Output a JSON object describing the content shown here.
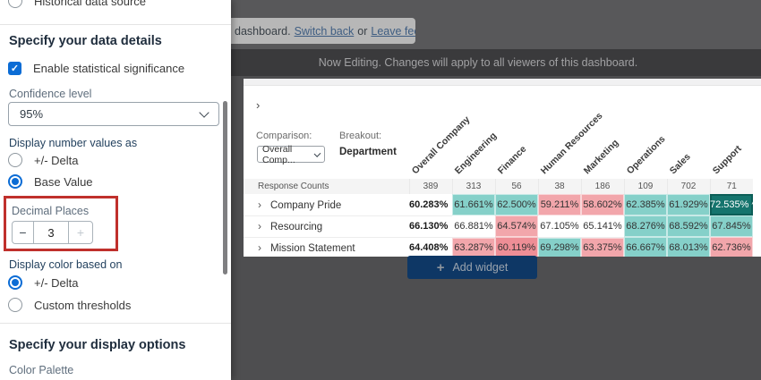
{
  "sidebar": {
    "historical_label": "Historical data source",
    "section1_title": "Specify your data details",
    "enable_stat_label": "Enable statistical significance",
    "check_glyph": "✓",
    "confidence_label": "Confidence level",
    "confidence_value": "95%",
    "display_number_label": "Display number values as",
    "number_options": [
      "+/- Delta",
      "Base Value"
    ],
    "decimal_label": "Decimal Places",
    "decimal_value": "3",
    "stepper_minus": "−",
    "stepper_plus": "+",
    "display_color_label": "Display color based on",
    "color_options": [
      "+/- Delta",
      "Custom thresholds"
    ],
    "section2_title": "Specify your display options",
    "palette_label": "Color Palette"
  },
  "topbar": {
    "toast_prefix": "dashboard.",
    "switch_back_link": "Switch back",
    "or_text": "or",
    "leave_feedback_link": "Leave feedback.",
    "now_editing": "Now Editing. Changes will apply to all viewers of this dashboard."
  },
  "widget": {
    "collapse_glyph": "›",
    "comparison_label": "Comparison:",
    "comparison_value": "Overall Comp...",
    "breakout_label": "Breakout:",
    "breakout_value": "Department",
    "table": {
      "columns": [
        "Overall Company",
        "Engineering",
        "Finance",
        "Human Resources",
        "Marketing",
        "Operations",
        "Sales",
        "Support"
      ],
      "counts_label": "Response Counts",
      "counts": [
        "389",
        "313",
        "56",
        "38",
        "186",
        "109",
        "702",
        "71"
      ],
      "row_chevron": "›",
      "rows": [
        {
          "label": "Company Pride",
          "values": [
            "60.283%",
            "61.661%",
            "62.500%",
            "59.211%",
            "58.602%",
            "62.385%",
            "61.929%",
            "72.535% ^"
          ],
          "cell_colors": [
            "none",
            "teal",
            "teal",
            "pink",
            "pink",
            "teal",
            "teal",
            "darkteal"
          ]
        },
        {
          "label": "Resourcing",
          "values": [
            "66.130%",
            "66.881%",
            "64.574%",
            "67.105%",
            "65.141%",
            "68.276%",
            "68.592%",
            "67.845%"
          ],
          "cell_colors": [
            "none",
            "none",
            "pink",
            "none",
            "none",
            "teal",
            "teal",
            "teal"
          ]
        },
        {
          "label": "Mission Statement",
          "values": [
            "64.408%",
            "63.287%",
            "60.119%",
            "69.298%",
            "63.375%",
            "66.667%",
            "68.013%",
            "62.736%"
          ],
          "cell_colors": [
            "none",
            "pink",
            "strongpink",
            "teal",
            "pink",
            "teal",
            "teal",
            "pink"
          ]
        }
      ]
    }
  },
  "add_widget_label": "Add widget",
  "colors": {
    "accent_blue": "#0b6cd5",
    "highlight_red": "#c0302c",
    "teal": "#85d0c9",
    "pink": "#f2a6ab",
    "strongpink": "#ee8e96",
    "darkteal": "#15746d",
    "button_navy": "#0e3765"
  }
}
